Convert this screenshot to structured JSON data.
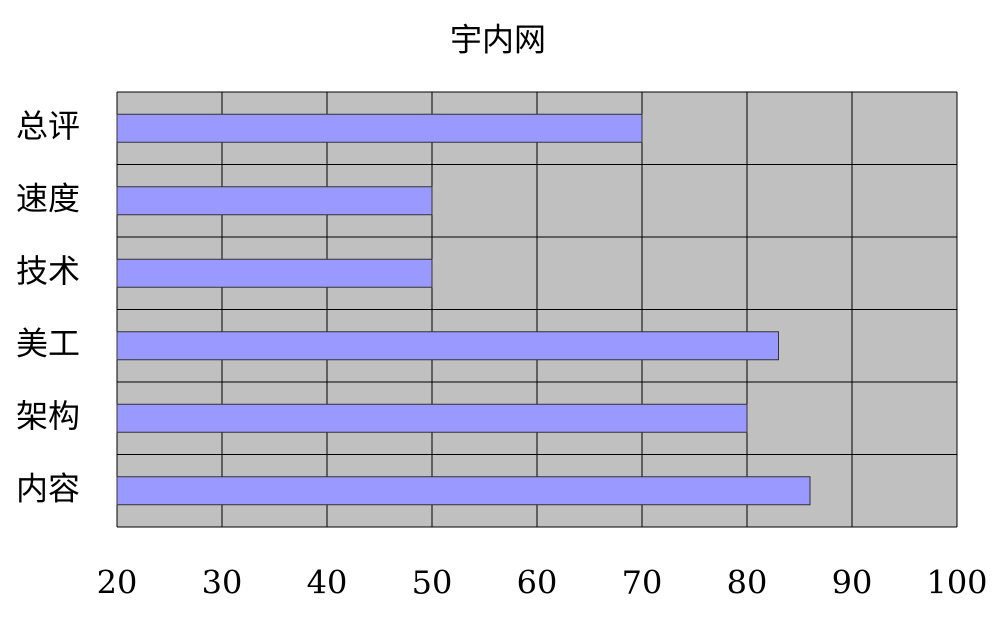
{
  "chart_data": {
    "type": "barh",
    "title": "宇内网",
    "categories": [
      "总评",
      "速度",
      "技术",
      "美工",
      "架构",
      "内容"
    ],
    "values": [
      70,
      50,
      50,
      83,
      80,
      86
    ],
    "color": "#9999ff",
    "xlim": [
      20,
      100
    ],
    "xticks": [
      20,
      30,
      40,
      50,
      60,
      70,
      80,
      90,
      100
    ],
    "grid": true
  }
}
